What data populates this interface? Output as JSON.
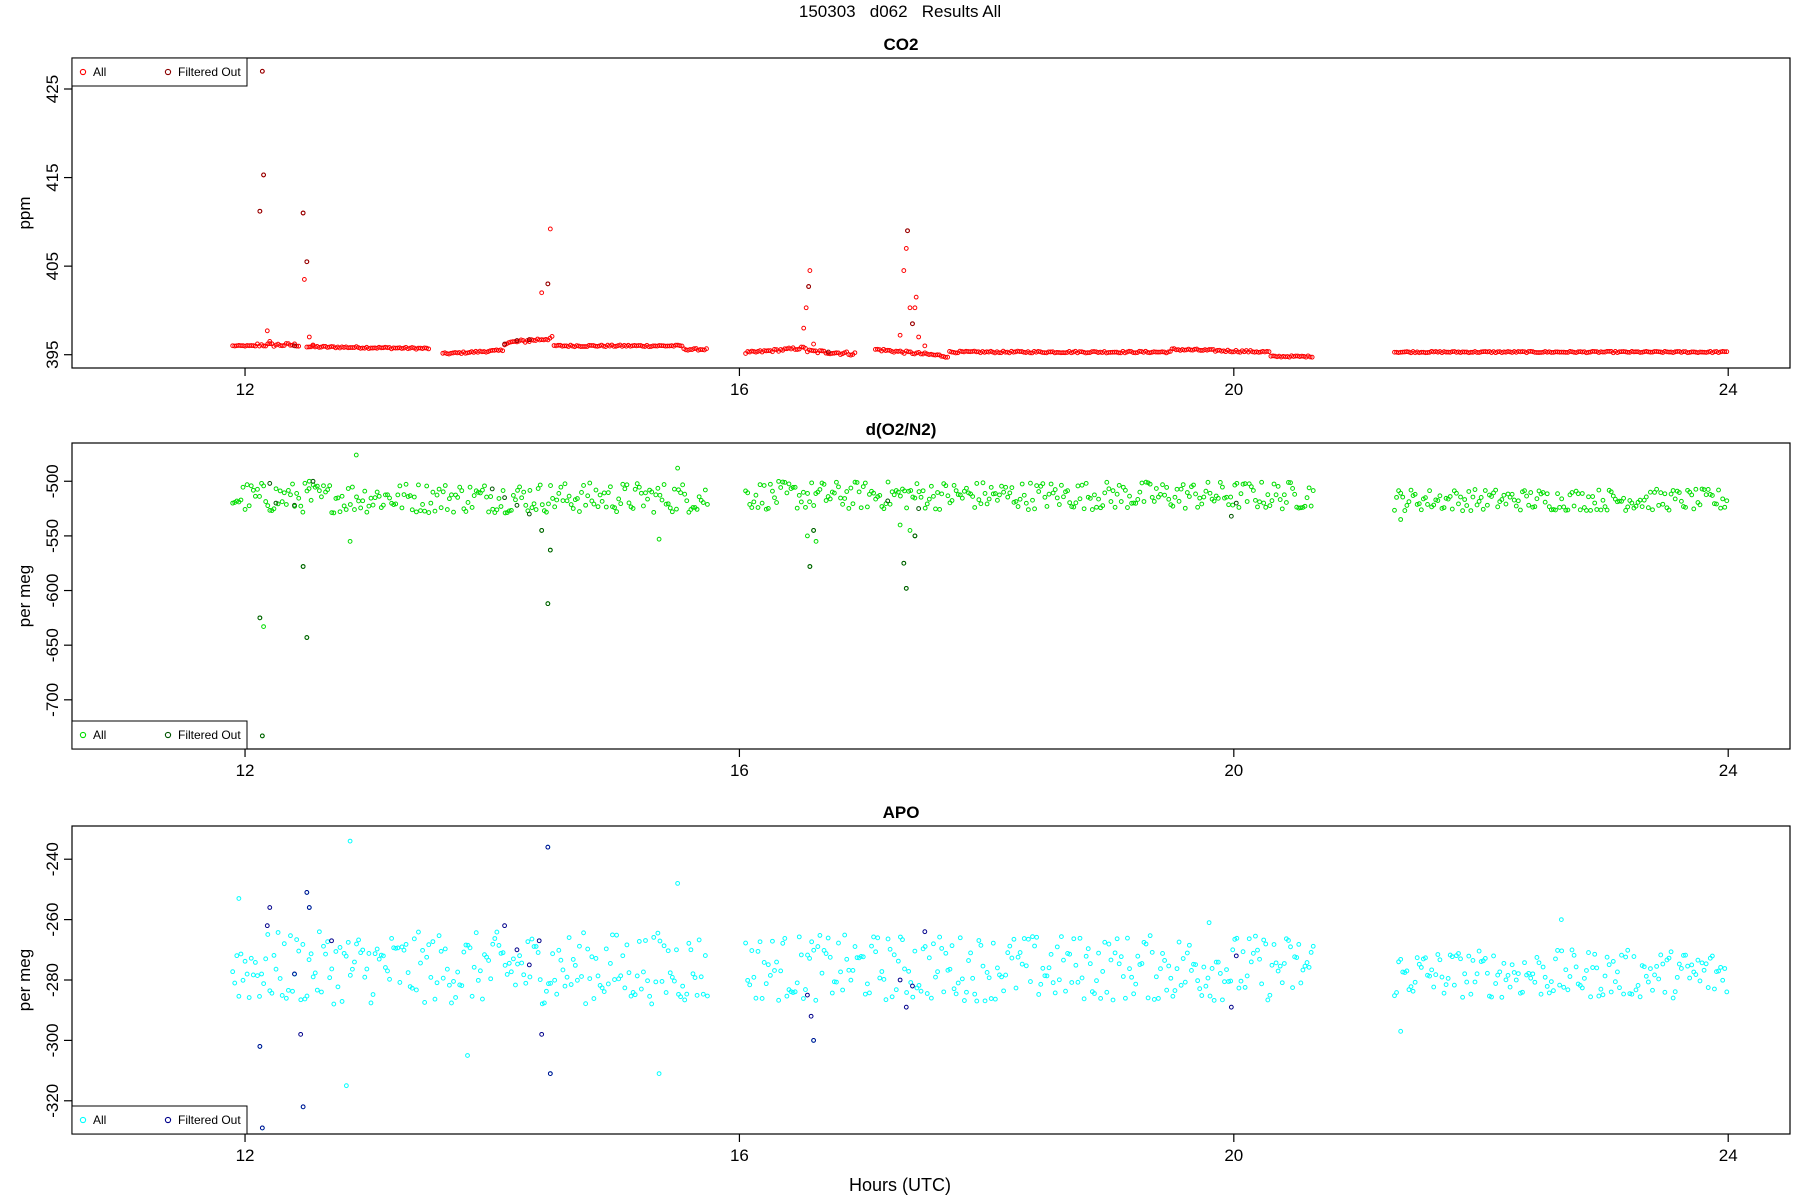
{
  "title": "150303   d062   Results All",
  "xlabel": "Hours (UTC)",
  "chart_data": [
    {
      "type": "scatter",
      "title": "CO2",
      "ylabel": "ppm",
      "xlim": [
        10.6,
        24.5
      ],
      "ylim": [
        393.5,
        428.5
      ],
      "xticks": [
        12,
        16,
        20,
        24
      ],
      "yticks": [
        395,
        405,
        415,
        425
      ],
      "legend_position": "top-left",
      "colors": {
        "all": "#ff0000",
        "filtered": "#8b0000"
      },
      "series": [
        {
          "name": "All"
        },
        {
          "name": "Filtered Out"
        }
      ],
      "segments": [
        {
          "t0": 11.9,
          "t1": 12.1,
          "base": 396.0,
          "slope": 0,
          "amp": 0.05
        },
        {
          "t0": 12.1,
          "t1": 12.45,
          "base": 396.1,
          "slope": 0,
          "amp": 0.2
        },
        {
          "t0": 12.5,
          "t1": 13.5,
          "base": 395.9,
          "slope": -0.2,
          "amp": 0.1
        },
        {
          "t0": 13.6,
          "t1": 14.1,
          "base": 395.1,
          "slope": 0.4,
          "amp": 0.1
        },
        {
          "t0": 14.1,
          "t1": 14.5,
          "base": 396.3,
          "slope": 0.6,
          "amp": 0.2
        },
        {
          "t0": 14.5,
          "t1": 15.55,
          "base": 396.0,
          "slope": 0,
          "amp": 0.1
        },
        {
          "t0": 15.55,
          "t1": 15.75,
          "base": 395.6,
          "slope": 0,
          "amp": 0.1
        },
        {
          "t0": 16.05,
          "t1": 16.55,
          "base": 395.2,
          "slope": 0.6,
          "amp": 0.15
        },
        {
          "t0": 16.55,
          "t1": 16.95,
          "base": 395.4,
          "slope": -0.3,
          "amp": 0.2
        },
        {
          "t0": 17.1,
          "t1": 17.7,
          "base": 395.6,
          "slope": -0.8,
          "amp": 0.15
        },
        {
          "t0": 17.7,
          "t1": 19.5,
          "base": 395.3,
          "slope": 0,
          "amp": 0.1
        },
        {
          "t0": 19.5,
          "t1": 20.3,
          "base": 395.6,
          "slope": -0.3,
          "amp": 0.12
        },
        {
          "t0": 20.3,
          "t1": 20.65,
          "base": 394.8,
          "slope": 0,
          "amp": 0.08
        },
        {
          "t0": 21.3,
          "t1": 24.0,
          "base": 395.3,
          "slope": 0,
          "amp": 0.08
        }
      ],
      "spikes": [
        {
          "x": 12.12,
          "y": 411.2
        },
        {
          "x": 12.15,
          "y": 415.3
        },
        {
          "x": 12.18,
          "y": 397.7
        },
        {
          "x": 12.2,
          "y": 396.5
        },
        {
          "x": 12.14,
          "y": 427.0
        },
        {
          "x": 12.47,
          "y": 411.0
        },
        {
          "x": 12.48,
          "y": 403.5
        },
        {
          "x": 12.5,
          "y": 405.5
        },
        {
          "x": 12.52,
          "y": 397.0
        },
        {
          "x": 12.55,
          "y": 396.1
        },
        {
          "x": 14.4,
          "y": 402.0
        },
        {
          "x": 14.45,
          "y": 403.0
        },
        {
          "x": 14.47,
          "y": 409.2
        },
        {
          "x": 14.3,
          "y": 396.7
        },
        {
          "x": 16.52,
          "y": 398.0
        },
        {
          "x": 16.54,
          "y": 400.3
        },
        {
          "x": 16.56,
          "y": 402.7
        },
        {
          "x": 16.57,
          "y": 404.5
        },
        {
          "x": 16.6,
          "y": 396.2
        },
        {
          "x": 17.3,
          "y": 397.2
        },
        {
          "x": 17.33,
          "y": 404.5
        },
        {
          "x": 17.35,
          "y": 407.0
        },
        {
          "x": 17.36,
          "y": 409.0
        },
        {
          "x": 17.38,
          "y": 400.3
        },
        {
          "x": 17.4,
          "y": 398.5
        },
        {
          "x": 17.42,
          "y": 400.3
        },
        {
          "x": 17.43,
          "y": 401.5
        },
        {
          "x": 17.45,
          "y": 397.0
        },
        {
          "x": 17.5,
          "y": 396.0
        }
      ],
      "filtered": [
        {
          "x": 12.12,
          "y": 411.2
        },
        {
          "x": 12.15,
          "y": 415.3
        },
        {
          "x": 12.14,
          "y": 427.0
        },
        {
          "x": 12.47,
          "y": 411.0
        },
        {
          "x": 12.5,
          "y": 405.5
        },
        {
          "x": 14.45,
          "y": 403.0
        },
        {
          "x": 16.56,
          "y": 402.7
        },
        {
          "x": 17.36,
          "y": 409.0
        },
        {
          "x": 14.1,
          "y": 396.2
        },
        {
          "x": 14.2,
          "y": 396.6
        },
        {
          "x": 14.3,
          "y": 396.7
        },
        {
          "x": 12.4,
          "y": 396.0
        },
        {
          "x": 16.72,
          "y": 395.3
        },
        {
          "x": 17.4,
          "y": 398.5
        }
      ]
    },
    {
      "type": "scatter",
      "title": "d(O2/N2)",
      "ylabel": "per meg",
      "xlim": [
        10.6,
        24.5
      ],
      "ylim": [
        -745,
        -465
      ],
      "xticks": [
        12,
        16,
        20,
        24
      ],
      "yticks": [
        -500,
        -550,
        -600,
        -650,
        -700
      ],
      "legend_position": "bottom-left",
      "colors": {
        "all": "#00dd00",
        "filtered": "#005500"
      },
      "series": [
        {
          "name": "All"
        },
        {
          "name": "Filtered Out"
        }
      ],
      "segments": [
        {
          "t0": 11.9,
          "t1": 15.75,
          "base": -515,
          "slope": 0,
          "amp": 14
        },
        {
          "t0": 16.05,
          "t1": 20.65,
          "base": -513,
          "slope": 0,
          "amp": 13
        },
        {
          "t0": 21.3,
          "t1": 24.0,
          "base": -517,
          "slope": 0,
          "amp": 10
        }
      ],
      "spikes": [
        {
          "x": 12.12,
          "y": -625
        },
        {
          "x": 12.15,
          "y": -633
        },
        {
          "x": 12.14,
          "y": -733
        },
        {
          "x": 12.47,
          "y": -578
        },
        {
          "x": 12.5,
          "y": -643
        },
        {
          "x": 12.52,
          "y": -500
        },
        {
          "x": 12.9,
          "y": -476
        },
        {
          "x": 12.85,
          "y": -555
        },
        {
          "x": 14.45,
          "y": -612
        },
        {
          "x": 14.47,
          "y": -563
        },
        {
          "x": 14.4,
          "y": -545
        },
        {
          "x": 15.35,
          "y": -553
        },
        {
          "x": 15.5,
          "y": -488
        },
        {
          "x": 16.55,
          "y": -550
        },
        {
          "x": 16.57,
          "y": -578
        },
        {
          "x": 16.6,
          "y": -545
        },
        {
          "x": 16.62,
          "y": -555
        },
        {
          "x": 17.3,
          "y": -540
        },
        {
          "x": 17.33,
          "y": -575
        },
        {
          "x": 17.35,
          "y": -598
        },
        {
          "x": 17.38,
          "y": -545
        },
        {
          "x": 17.42,
          "y": -550
        },
        {
          "x": 21.35,
          "y": -535
        }
      ],
      "filtered": [
        {
          "x": 12.12,
          "y": -625
        },
        {
          "x": 12.14,
          "y": -733
        },
        {
          "x": 12.47,
          "y": -578
        },
        {
          "x": 12.5,
          "y": -643
        },
        {
          "x": 12.55,
          "y": -500
        },
        {
          "x": 12.2,
          "y": -502
        },
        {
          "x": 12.25,
          "y": -520
        },
        {
          "x": 12.4,
          "y": -522
        },
        {
          "x": 14.45,
          "y": -612
        },
        {
          "x": 14.47,
          "y": -563
        },
        {
          "x": 14.4,
          "y": -545
        },
        {
          "x": 14.0,
          "y": -507
        },
        {
          "x": 14.1,
          "y": -515
        },
        {
          "x": 14.2,
          "y": -522
        },
        {
          "x": 14.3,
          "y": -530
        },
        {
          "x": 16.57,
          "y": -578
        },
        {
          "x": 16.6,
          "y": -545
        },
        {
          "x": 17.35,
          "y": -598
        },
        {
          "x": 17.33,
          "y": -575
        },
        {
          "x": 17.42,
          "y": -550
        },
        {
          "x": 17.45,
          "y": -525
        },
        {
          "x": 17.2,
          "y": -518
        },
        {
          "x": 19.98,
          "y": -532
        },
        {
          "x": 20.02,
          "y": -520
        }
      ]
    },
    {
      "type": "scatter",
      "title": "APO",
      "ylabel": "per meg",
      "xlim": [
        10.6,
        24.5
      ],
      "ylim": [
        -331,
        -229
      ],
      "xticks": [
        12,
        16,
        20,
        24
      ],
      "yticks": [
        -240,
        -260,
        -280,
        -300,
        -320
      ],
      "legend_position": "bottom-left",
      "colors": {
        "all": "#00ffff",
        "filtered": "#00008b"
      },
      "series": [
        {
          "name": "All"
        },
        {
          "name": "Filtered Out"
        }
      ],
      "segments": [
        {
          "t0": 11.9,
          "t1": 15.75,
          "base": -276,
          "slope": 0,
          "amp": 12
        },
        {
          "t0": 16.05,
          "t1": 20.65,
          "base": -276,
          "slope": 0,
          "amp": 11
        },
        {
          "t0": 21.3,
          "t1": 24.0,
          "base": -278,
          "slope": 0,
          "amp": 8
        }
      ],
      "spikes": [
        {
          "x": 11.95,
          "y": -253
        },
        {
          "x": 12.14,
          "y": -329
        },
        {
          "x": 12.12,
          "y": -302
        },
        {
          "x": 12.47,
          "y": -322
        },
        {
          "x": 12.5,
          "y": -251
        },
        {
          "x": 12.52,
          "y": -256
        },
        {
          "x": 12.85,
          "y": -234
        },
        {
          "x": 12.82,
          "y": -315
        },
        {
          "x": 13.8,
          "y": -305
        },
        {
          "x": 14.45,
          "y": -236
        },
        {
          "x": 14.47,
          "y": -311
        },
        {
          "x": 15.35,
          "y": -311
        },
        {
          "x": 15.5,
          "y": -248
        },
        {
          "x": 16.6,
          "y": -300
        },
        {
          "x": 21.35,
          "y": -297
        },
        {
          "x": 22.65,
          "y": -260
        },
        {
          "x": 19.8,
          "y": -261
        }
      ],
      "filtered": [
        {
          "x": 12.12,
          "y": -302
        },
        {
          "x": 12.14,
          "y": -329
        },
        {
          "x": 12.18,
          "y": -262
        },
        {
          "x": 12.2,
          "y": -256
        },
        {
          "x": 12.45,
          "y": -298
        },
        {
          "x": 12.47,
          "y": -322
        },
        {
          "x": 12.52,
          "y": -256
        },
        {
          "x": 12.5,
          "y": -251
        },
        {
          "x": 12.4,
          "y": -278
        },
        {
          "x": 12.7,
          "y": -267
        },
        {
          "x": 14.1,
          "y": -262
        },
        {
          "x": 14.2,
          "y": -270
        },
        {
          "x": 14.3,
          "y": -275
        },
        {
          "x": 14.38,
          "y": -267
        },
        {
          "x": 14.45,
          "y": -236
        },
        {
          "x": 14.47,
          "y": -311
        },
        {
          "x": 14.4,
          "y": -298
        },
        {
          "x": 16.58,
          "y": -292
        },
        {
          "x": 16.6,
          "y": -300
        },
        {
          "x": 16.55,
          "y": -285
        },
        {
          "x": 17.3,
          "y": -280
        },
        {
          "x": 17.35,
          "y": -289
        },
        {
          "x": 17.4,
          "y": -282
        },
        {
          "x": 17.5,
          "y": -264
        },
        {
          "x": 19.98,
          "y": -289
        },
        {
          "x": 20.02,
          "y": -272
        }
      ]
    }
  ]
}
